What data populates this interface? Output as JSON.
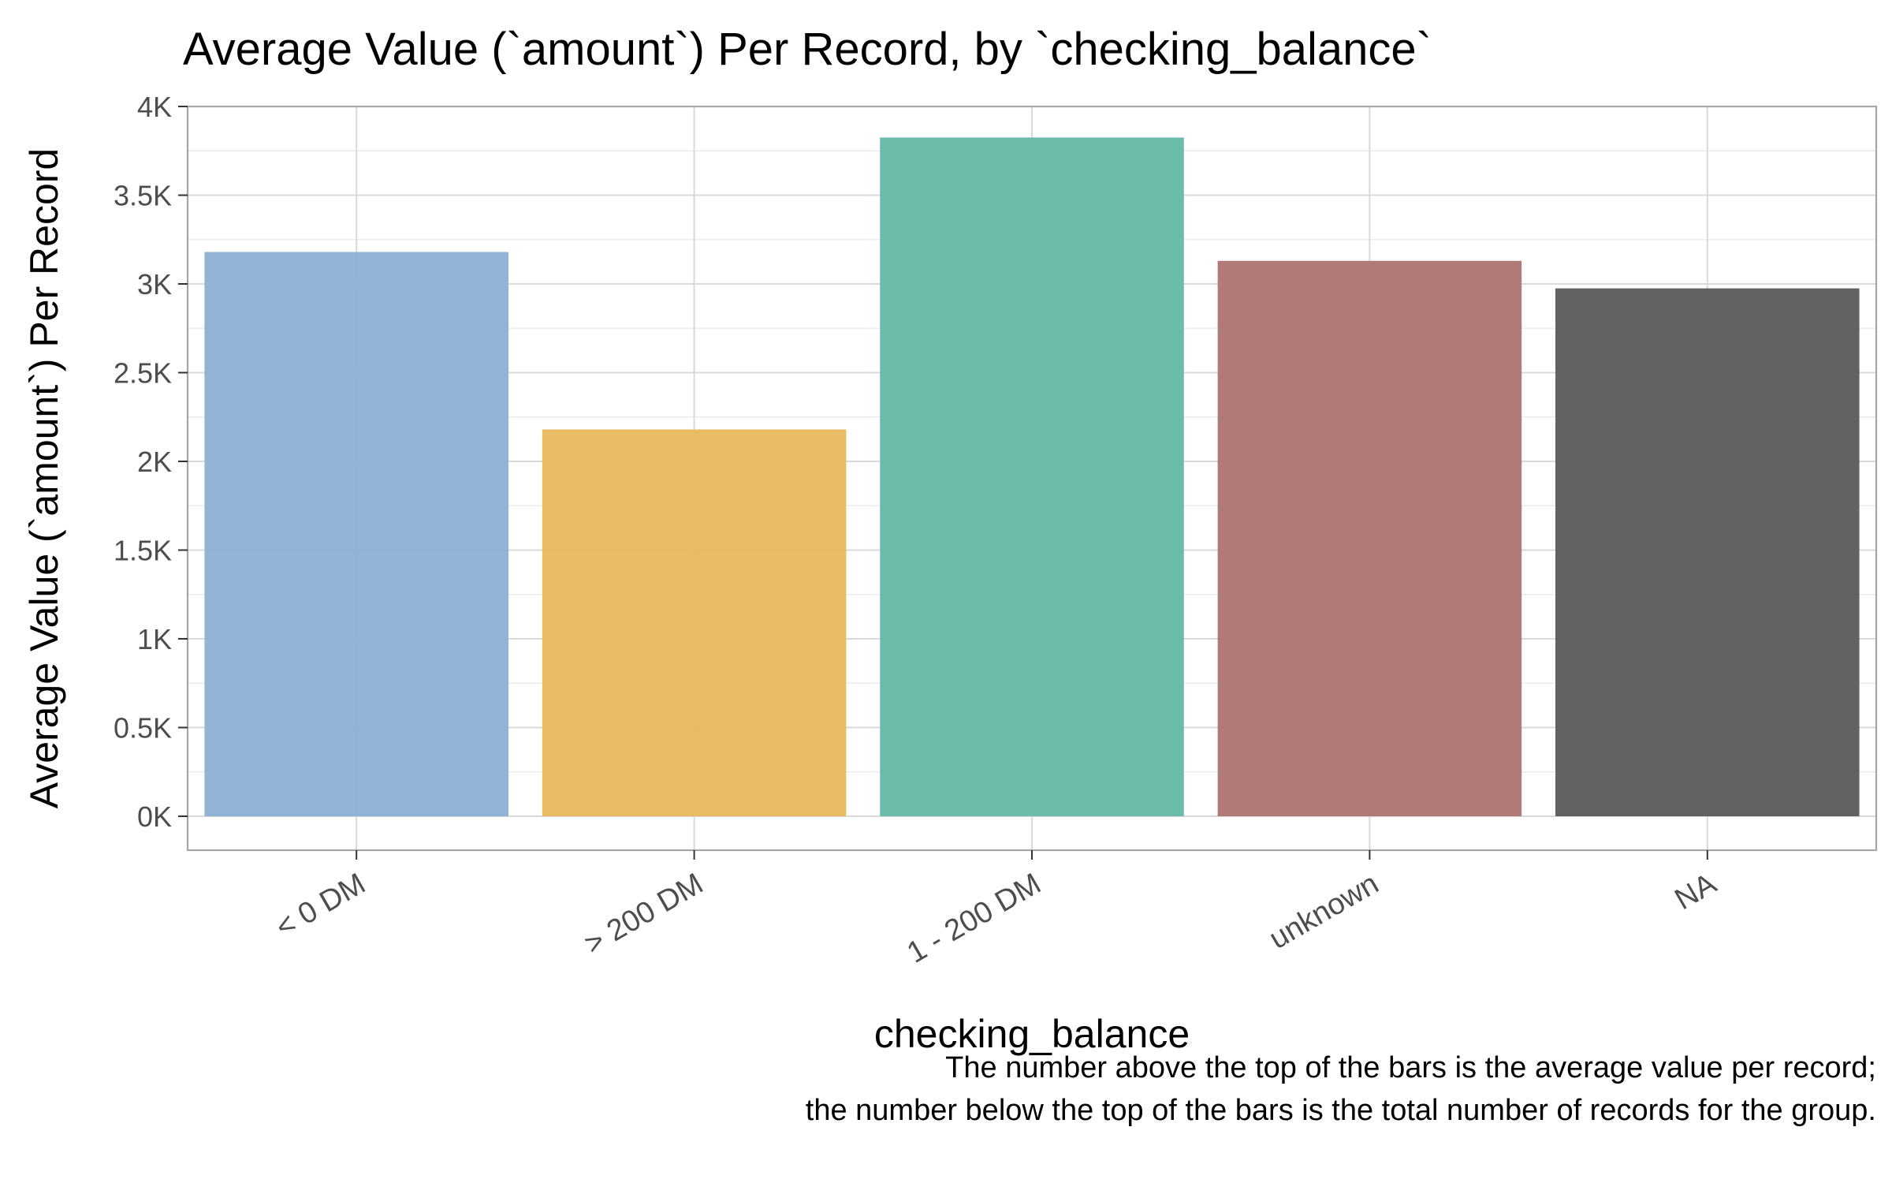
{
  "chart_data": {
    "type": "bar",
    "title": "Average Value (`amount`) Per Record, by `checking_balance`",
    "xlabel": "checking_balance",
    "ylabel": "Average Value (`amount`) Per Record",
    "categories": [
      "< 0 DM",
      "> 200 DM",
      "1 - 200 DM",
      "unknown",
      "NA"
    ],
    "values": [
      3180,
      2180,
      3825,
      3130,
      2975
    ],
    "colors": [
      "#8cb0d4",
      "#e8b85e",
      "#66b9a8",
      "#ad7570",
      "#595c5e"
    ],
    "yticks": [
      0,
      500,
      1000,
      1500,
      2000,
      2500,
      3000,
      3500,
      4000
    ],
    "ytick_labels": [
      "0K",
      "0.5K",
      "1K",
      "1.5K",
      "2K",
      "2.5K",
      "3K",
      "3.5K",
      "4K"
    ],
    "ylim": [
      -190,
      4000
    ],
    "grid": true,
    "caption": [
      "The number above the top of the bars is the average value per record;",
      "the number below the top of the bars is the total number of records for the group."
    ]
  }
}
